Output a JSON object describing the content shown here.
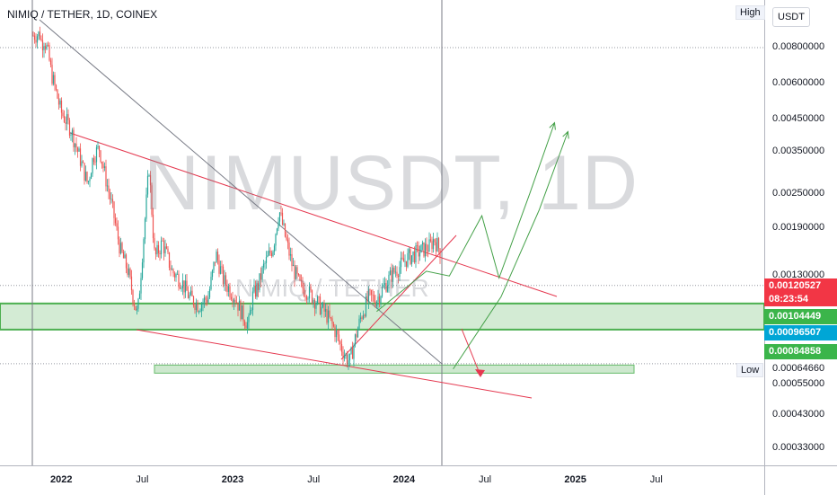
{
  "chart_title": "NIMIQ / TETHER, 1D, COINEX",
  "watermark": "NIMUSDT, 1D",
  "watermark_sub": "NIMIQ / TETHER",
  "currency_button": "USDT",
  "high_tag": "High",
  "low_tag": "Low",
  "colors": {
    "up": "#26a69a",
    "down": "#ef5350",
    "trendline": "#e53950",
    "projection": "#43a047",
    "zone_fill": "#c8e6c9",
    "zone_border": "#4caf50",
    "price_badge": "#f23645",
    "blue_badge": "#00a6d6",
    "green_badge": "#3bb54a"
  },
  "chart_data": {
    "type": "candlestick",
    "title": "NIMIQ / TETHER, 1D, COINEX",
    "scale": "log",
    "y_ticks": [
      "0.00800000",
      "0.00600000",
      "0.00450000",
      "0.00350000",
      "0.00250000",
      "0.00190000",
      "0.00130000",
      "0.00055000",
      "0.00043000",
      "0.00033000"
    ],
    "x_ticks": [
      "2022",
      "Jul",
      "2023",
      "Jul",
      "2024",
      "Jul",
      "2025",
      "Jul"
    ],
    "year_ticks": [
      "2022",
      "2023",
      "2024",
      "2025"
    ],
    "price_badges": [
      {
        "value": "0.00120527",
        "sub": "08:23:54",
        "color": "#f23645"
      },
      {
        "value": "0.00104449",
        "color": "#3bb54a"
      },
      {
        "value": "0.00096507",
        "color": "#00a6d6"
      },
      {
        "value": "0.00084858",
        "color": "#3bb54a"
      }
    ],
    "low_value": "0.00064660",
    "series_path": [
      [
        0,
        0.0088
      ],
      [
        0.4,
        0.0089
      ],
      [
        0.5,
        0.0082
      ],
      [
        0.6,
        0.0086
      ],
      [
        0.8,
        0.0078
      ],
      [
        1.0,
        0.0065
      ],
      [
        1.5,
        0.0048
      ],
      [
        2.0,
        0.0042
      ],
      [
        2.5,
        0.0033
      ],
      [
        2.9,
        0.0027
      ],
      [
        3.2,
        0.0034
      ],
      [
        3.5,
        0.0036
      ],
      [
        3.8,
        0.0029
      ],
      [
        4.2,
        0.0022
      ],
      [
        4.6,
        0.0016
      ],
      [
        5.0,
        0.00135
      ],
      [
        5.3,
        0.00108
      ],
      [
        5.5,
        0.00095
      ],
      [
        5.7,
        0.0014
      ],
      [
        6.1,
        0.0031
      ],
      [
        6.4,
        0.0015
      ],
      [
        6.8,
        0.0017
      ],
      [
        7.3,
        0.00135
      ],
      [
        7.8,
        0.00125
      ],
      [
        8.2,
        0.0011
      ],
      [
        8.7,
        0.00103
      ],
      [
        9.2,
        0.0011
      ],
      [
        9.6,
        0.00155
      ],
      [
        10.0,
        0.00125
      ],
      [
        10.6,
        0.0011
      ],
      [
        11.0,
        0.00095
      ],
      [
        11.3,
        0.00088
      ],
      [
        11.5,
        0.0011
      ],
      [
        11.8,
        0.0012
      ],
      [
        12.1,
        0.0014
      ],
      [
        12.6,
        0.00165
      ],
      [
        12.9,
        0.0022
      ],
      [
        13.2,
        0.0018
      ],
      [
        13.6,
        0.0014
      ],
      [
        14.0,
        0.0012
      ],
      [
        14.4,
        0.00115
      ],
      [
        14.9,
        0.00105
      ],
      [
        15.4,
        0.00095
      ],
      [
        15.8,
        0.00085
      ],
      [
        16.1,
        0.00075
      ],
      [
        16.4,
        0.00068
      ],
      [
        16.6,
        0.00066
      ],
      [
        16.9,
        0.0008
      ],
      [
        17.2,
        0.00095
      ],
      [
        17.6,
        0.0011
      ],
      [
        18.0,
        0.00108
      ],
      [
        18.4,
        0.0012
      ],
      [
        18.8,
        0.00132
      ],
      [
        19.2,
        0.0014
      ],
      [
        19.6,
        0.0015
      ],
      [
        20.0,
        0.00155
      ],
      [
        20.4,
        0.0016
      ],
      [
        20.8,
        0.00165
      ],
      [
        21.0,
        0.00175
      ],
      [
        21.3,
        0.0016
      ],
      [
        21.6,
        0.00145
      ],
      [
        21.9,
        0.0012
      ]
    ],
    "annotations": {
      "zones": [
        {
          "from": 0.00084858,
          "to": 0.00104449
        },
        {
          "from": 0.0006,
          "to": 0.00064
        }
      ],
      "dashed_levels": [
        "0.00800000",
        "0.00120527",
        "0.00064660"
      ],
      "projection_paths": [
        [
          [
            18.0,
            0.00098
          ],
          [
            20.6,
            0.00135
          ],
          [
            21.8,
            0.0013
          ],
          [
            23.5,
            0.0021
          ],
          [
            24.4,
            0.00128
          ],
          [
            26.0,
            0.0025
          ],
          [
            27.3,
            0.0044
          ]
        ],
        [
          [
            22.0,
            0.00062
          ],
          [
            24.5,
            0.0011
          ],
          [
            26.5,
            0.0022
          ],
          [
            28.0,
            0.0041
          ]
        ]
      ]
    }
  }
}
